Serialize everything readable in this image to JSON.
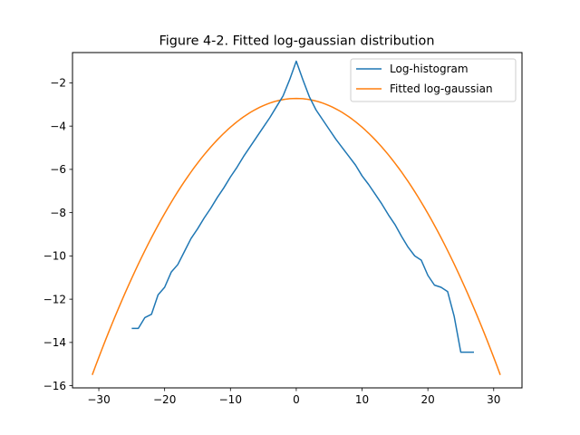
{
  "chart_data": {
    "type": "line",
    "title": "Figure 4-2. Fitted log-gaussian distribution",
    "xlabel": "",
    "ylabel": "",
    "xlim": [
      -34,
      34.3
    ],
    "ylim": [
      -16.1,
      -0.6
    ],
    "xticks": [
      -30,
      -20,
      -10,
      0,
      10,
      20,
      30
    ],
    "xtick_labels": [
      "−30",
      "−20",
      "−10",
      "0",
      "10",
      "20",
      "30"
    ],
    "yticks": [
      -2,
      -4,
      -6,
      -8,
      -10,
      -12,
      -14,
      -16
    ],
    "ytick_labels": [
      "−2",
      "−4",
      "−6",
      "−8",
      "−10",
      "−12",
      "−14",
      "−16"
    ],
    "grid": false,
    "legend_position": "top-right",
    "series": [
      {
        "name": "Log-histogram",
        "color": "#1f77b4",
        "x": [
          -25,
          -24,
          -23,
          -22,
          -21,
          -20,
          -19,
          -18,
          -17,
          -16,
          -15,
          -14,
          -13,
          -12,
          -11,
          -10,
          -9,
          -8,
          -7,
          -6,
          -5,
          -4,
          -3,
          -2,
          -1,
          0,
          1,
          2,
          3,
          4,
          5,
          6,
          7,
          8,
          9,
          10,
          11,
          12,
          13,
          14,
          15,
          16,
          17,
          18,
          19,
          20,
          21,
          22,
          23,
          24,
          25,
          26,
          27
        ],
        "y": [
          -13.35,
          -13.35,
          -12.85,
          -12.7,
          -11.8,
          -11.45,
          -10.75,
          -10.4,
          -9.8,
          -9.2,
          -8.75,
          -8.25,
          -7.8,
          -7.3,
          -6.85,
          -6.35,
          -5.9,
          -5.4,
          -4.95,
          -4.5,
          -4.05,
          -3.6,
          -3.1,
          -2.6,
          -1.85,
          -1.0,
          -1.85,
          -2.65,
          -3.25,
          -3.7,
          -4.15,
          -4.6,
          -5.0,
          -5.4,
          -5.8,
          -6.3,
          -6.7,
          -7.15,
          -7.6,
          -8.1,
          -8.55,
          -9.1,
          -9.6,
          -10.0,
          -10.2,
          -10.9,
          -11.35,
          -11.45,
          -11.65,
          -12.8,
          -14.45,
          -14.45,
          -14.45
        ]
      },
      {
        "name": "Fitted log-gaussian",
        "color": "#ff7f0e",
        "fit": {
          "peak": -2.72,
          "tail": -15.5,
          "xmin": -31,
          "xmax": 31
        }
      }
    ]
  }
}
